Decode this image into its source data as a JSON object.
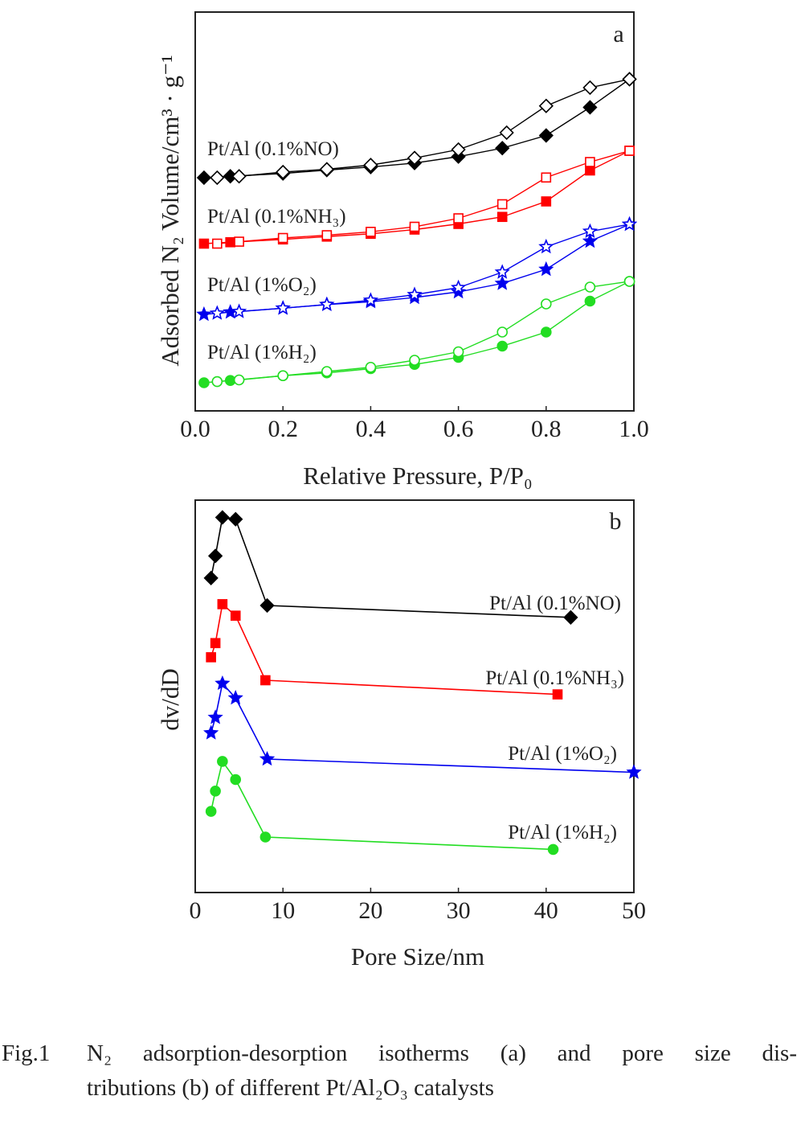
{
  "figure": {
    "caption": {
      "number": "Fig.1",
      "line1": "N₂ adsorption-desorption isotherms (a) and pore size dis-",
      "line2": "tributions (b) of different Pt/Al₂O₃ catalysts"
    }
  },
  "chart_data": [
    {
      "type": "line",
      "panel_label": "a",
      "xlabel": "Relative Pressure, P/P₀",
      "ylabel": "Adsorbed N₂ Volume/cm³ · g⁻¹",
      "xlim": [
        0.0,
        1.0
      ],
      "x_ticks": [
        "0.0",
        "0.2",
        "0.4",
        "0.6",
        "0.8",
        "1.0"
      ],
      "y_ticks": [],
      "grid": false,
      "series": [
        {
          "name": "Pt/Al (0.1%NO)",
          "color": "#000000",
          "marker": "diamond",
          "adsorption": {
            "x": [
              0.02,
              0.08,
              0.2,
              0.3,
              0.4,
              0.5,
              0.6,
              0.7,
              0.8,
              0.9,
              0.99
            ],
            "y": [
              0.0,
              0.05,
              0.15,
              0.27,
              0.38,
              0.52,
              0.75,
              1.05,
              1.5,
              2.5,
              3.5
            ]
          },
          "desorption": {
            "x": [
              0.99,
              0.9,
              0.8,
              0.71,
              0.6,
              0.5,
              0.4,
              0.3,
              0.2,
              0.1,
              0.05
            ],
            "y": [
              3.5,
              3.2,
              2.55,
              1.6,
              1.0,
              0.7,
              0.45,
              0.3,
              0.2,
              0.05,
              0.0
            ]
          }
        },
        {
          "name": "Pt/Al (0.1%NH₃)",
          "color": "#ff0000",
          "marker": "square",
          "adsorption": {
            "x": [
              0.02,
              0.08,
              0.2,
              0.3,
              0.4,
              0.5,
              0.6,
              0.7,
              0.8,
              0.9,
              0.99
            ],
            "y": [
              0.0,
              0.05,
              0.15,
              0.25,
              0.35,
              0.5,
              0.7,
              0.95,
              1.5,
              2.6,
              3.3
            ]
          },
          "desorption": {
            "x": [
              0.99,
              0.9,
              0.8,
              0.7,
              0.6,
              0.5,
              0.4,
              0.3,
              0.2,
              0.1,
              0.05
            ],
            "y": [
              3.3,
              2.9,
              2.35,
              1.4,
              0.9,
              0.6,
              0.42,
              0.3,
              0.2,
              0.07,
              0.0
            ]
          }
        },
        {
          "name": "Pt/Al (1%O₂)",
          "color": "#0000ee",
          "marker": "star",
          "adsorption": {
            "x": [
              0.02,
              0.08,
              0.2,
              0.3,
              0.4,
              0.5,
              0.6,
              0.7,
              0.8,
              0.9,
              0.99
            ],
            "y": [
              0.0,
              0.08,
              0.22,
              0.35,
              0.45,
              0.6,
              0.8,
              1.1,
              1.6,
              2.6,
              3.2
            ]
          },
          "desorption": {
            "x": [
              0.99,
              0.9,
              0.8,
              0.7,
              0.6,
              0.5,
              0.4,
              0.3,
              0.2,
              0.1,
              0.05
            ],
            "y": [
              3.2,
              2.95,
              2.4,
              1.5,
              0.95,
              0.7,
              0.5,
              0.35,
              0.22,
              0.1,
              0.04
            ]
          }
        },
        {
          "name": "Pt/Al (1%H₂)",
          "color": "#22dd22",
          "marker": "circle",
          "adsorption": {
            "x": [
              0.02,
              0.08,
              0.2,
              0.3,
              0.4,
              0.5,
              0.6,
              0.7,
              0.8,
              0.9,
              0.99
            ],
            "y": [
              0.0,
              0.08,
              0.25,
              0.35,
              0.5,
              0.65,
              0.9,
              1.3,
              1.8,
              2.9,
              3.6
            ]
          },
          "desorption": {
            "x": [
              0.99,
              0.9,
              0.8,
              0.7,
              0.6,
              0.5,
              0.4,
              0.3,
              0.2,
              0.1,
              0.05
            ],
            "y": [
              3.6,
              3.4,
              2.8,
              1.8,
              1.1,
              0.8,
              0.55,
              0.4,
              0.25,
              0.1,
              0.04
            ]
          }
        }
      ]
    },
    {
      "type": "line",
      "panel_label": "b",
      "xlabel": "Pore Size/nm",
      "ylabel": "dv/dD",
      "xlim": [
        0,
        50
      ],
      "x_ticks": [
        "0",
        "10",
        "20",
        "30",
        "40",
        "50"
      ],
      "y_ticks": [],
      "grid": false,
      "series": [
        {
          "name": "Pt/Al (0.1%NO)",
          "color": "#000000",
          "marker": "diamond",
          "x": [
            1.8,
            2.3,
            3.1,
            4.6,
            8.2,
            42.8
          ],
          "y": [
            0.62,
            1.12,
            1.99,
            1.95,
            0.0,
            -0.27
          ]
        },
        {
          "name": "Pt/Al (0.1%NH₃)",
          "color": "#ff0000",
          "marker": "square",
          "x": [
            1.8,
            2.3,
            3.1,
            4.6,
            8.0,
            41.3
          ],
          "y": [
            0.52,
            0.84,
            1.72,
            1.46,
            0.0,
            -0.32
          ]
        },
        {
          "name": "Pt/Al (1%O₂)",
          "color": "#0000ee",
          "marker": "star",
          "x": [
            1.8,
            2.3,
            3.1,
            4.6,
            8.2,
            50.0
          ],
          "y": [
            0.59,
            0.94,
            1.71,
            1.38,
            0.0,
            -0.3
          ]
        },
        {
          "name": "Pt/Al (1%H₂)",
          "color": "#22dd22",
          "marker": "circle",
          "x": [
            1.8,
            2.3,
            3.1,
            4.6,
            8.0,
            40.8
          ],
          "y": [
            0.58,
            1.04,
            1.71,
            1.3,
            0.0,
            -0.28
          ]
        }
      ]
    }
  ]
}
